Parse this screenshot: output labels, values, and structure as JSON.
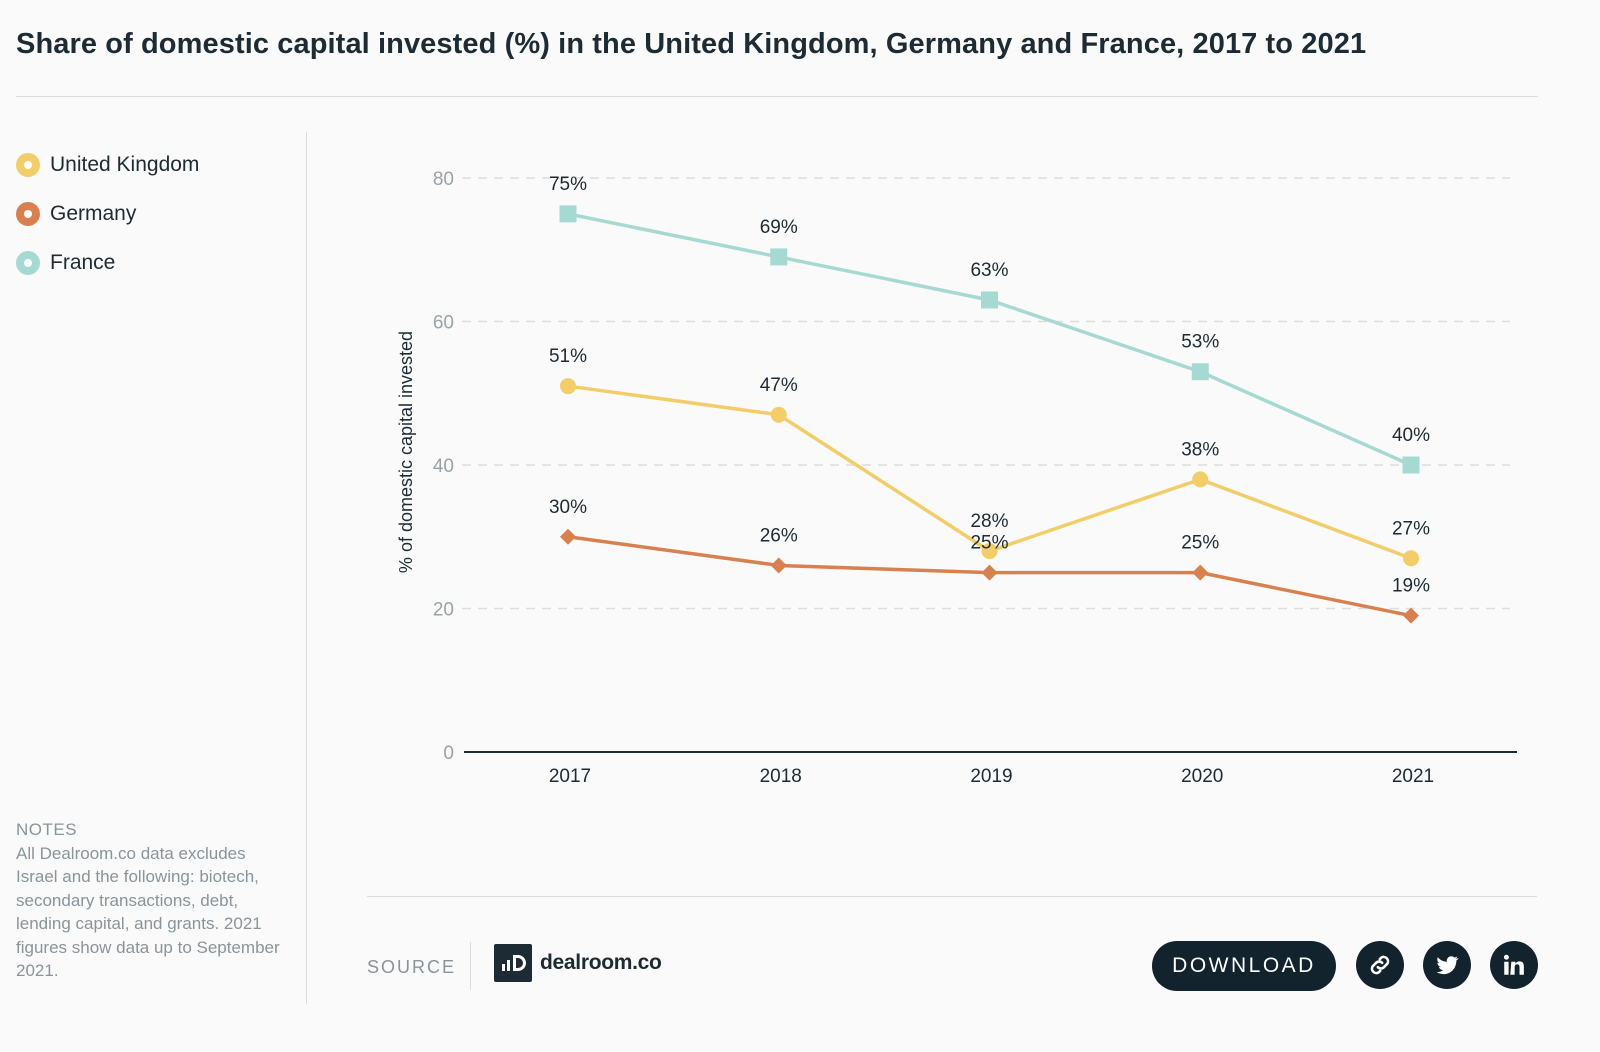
{
  "title": "Share of domestic capital invested (%) in the United Kingdom, Germany and France, 2017 to 2021",
  "legend": [
    {
      "label": "United Kingdom",
      "color": "#f2cd6a"
    },
    {
      "label": "Germany",
      "color": "#d8804f"
    },
    {
      "label": "France",
      "color": "#a6d9d1"
    }
  ],
  "notes": {
    "title": "NOTES",
    "text": "All Dealroom.co data excludes Israel and the following: biotech, secondary transactions, debt, lending capital, and grants. 2021 figures show data up to September 2021."
  },
  "footer": {
    "source_label": "SOURCE",
    "logo_text": "dealroom.co",
    "download_label": "DOWNLOAD",
    "icons": [
      "link-icon",
      "twitter-icon",
      "linkedin-icon"
    ]
  },
  "chart_data": {
    "type": "line",
    "x": [
      "2017",
      "2018",
      "2019",
      "2020",
      "2021"
    ],
    "ylabel": "% of domestic capital invested",
    "ylim": [
      0,
      80
    ],
    "yticks": [
      0,
      20,
      40,
      60,
      80
    ],
    "grid": true,
    "legend_position": "left",
    "series": [
      {
        "name": "United Kingdom",
        "color": "#f2cd6a",
        "marker": "circle",
        "values": [
          51,
          47,
          28,
          38,
          27
        ],
        "labels": [
          "51%",
          "47%",
          "28%",
          "38%",
          "27%"
        ]
      },
      {
        "name": "Germany",
        "color": "#d8804f",
        "marker": "diamond",
        "values": [
          30,
          26,
          25,
          25,
          19
        ],
        "labels": [
          "30%",
          "26%",
          "25%",
          "25%",
          "19%"
        ]
      },
      {
        "name": "France",
        "color": "#a6d9d1",
        "marker": "square",
        "values": [
          75,
          69,
          63,
          53,
          40
        ],
        "labels": [
          "75%",
          "69%",
          "63%",
          "53%",
          "40%"
        ]
      }
    ]
  }
}
